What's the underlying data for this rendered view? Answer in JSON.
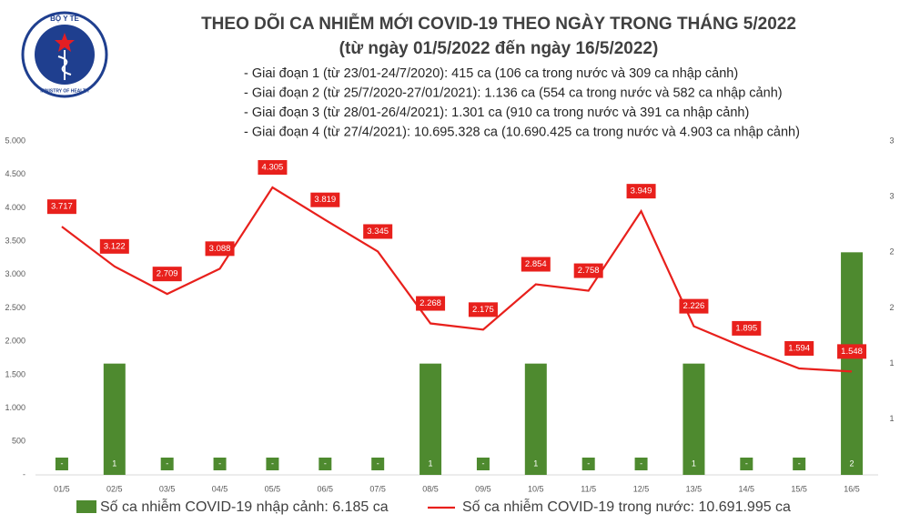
{
  "chart_data": {
    "type": "combo",
    "logo_texts": [
      "BỘ Y TẾ",
      "MINISTRY OF HEALTH"
    ],
    "title": "THEO DÕI CA NHIỄM MỚI COVID-19 THEO NGÀY TRONG THÁNG 5/2022",
    "subtitle": "(từ ngày 01/5/2022 đến ngày 16/5/2022)",
    "annotations": [
      "- Giai đoạn 1 (từ 23/01-24/7/2020): 415 ca (106 ca trong nước và 309 ca nhập cảnh)",
      "- Giai đoạn 2 (từ 25/7/2020-27/01/2021): 1.136 ca (554 ca trong nước và 582 ca nhập cảnh)",
      "- Giai đoạn 3 (từ 28/01-26/4/2021): 1.301 ca (910 ca trong nước và 391 ca nhập cảnh)",
      "- Giai đoạn 4 (từ 27/4/2021): 10.695.328 ca (10.690.425 ca trong nước và 4.903 ca nhập cảnh)"
    ],
    "categories": [
      "01/5",
      "02/5",
      "03/5",
      "04/5",
      "05/5",
      "06/5",
      "07/5",
      "08/5",
      "09/5",
      "10/5",
      "11/5",
      "12/5",
      "13/5",
      "14/5",
      "15/5",
      "16/5"
    ],
    "series": [
      {
        "name": "Số ca nhiễm COVID-19 nhập cảnh: 6.185 ca",
        "type": "bar",
        "axis": "y2",
        "color": "#4e8a2f",
        "values": [
          0,
          1,
          0,
          0,
          0,
          0,
          0,
          1,
          0,
          1,
          0,
          0,
          1,
          0,
          0,
          2
        ],
        "value_labels": [
          "-",
          "1",
          "-",
          "-",
          "-",
          "-",
          "-",
          "1",
          "-",
          "1",
          "-",
          "-",
          "1",
          "-",
          "-",
          "2"
        ]
      },
      {
        "name": "Số ca nhiễm COVID-19 trong nước: 10.691.995 ca",
        "type": "line",
        "color": "#e8201c",
        "values": [
          3717,
          3122,
          2709,
          3088,
          4305,
          3819,
          3345,
          2268,
          2175,
          2854,
          2758,
          3949,
          2226,
          1895,
          1594,
          1548
        ],
        "value_labels": [
          "3.717",
          "3.122",
          "2.709",
          "3.088",
          "4.305",
          "3.819",
          "3.345",
          "2.268",
          "2.175",
          "2.854",
          "2.758",
          "3.949",
          "2.226",
          "1.895",
          "1.594",
          "1.548"
        ]
      }
    ],
    "ylim": [
      0,
      5000
    ],
    "yticks": [
      {
        "value": 0,
        "label": "-"
      },
      500,
      {
        "value": 1000,
        "label": "1.000"
      },
      {
        "value": 1500,
        "label": "1.500"
      },
      {
        "value": 2000,
        "label": "2.000"
      },
      {
        "value": 2500,
        "label": "2.500"
      },
      {
        "value": 3000,
        "label": "3.000"
      },
      {
        "value": 3500,
        "label": "3.500"
      },
      {
        "value": 4000,
        "label": "4.000"
      },
      {
        "value": 4500,
        "label": "4.500"
      },
      {
        "value": 5000,
        "label": "5.000"
      }
    ],
    "y2lim": [
      0,
      3
    ],
    "y2ticks": [
      {
        "value": 0.5,
        "label": "1"
      },
      1,
      {
        "value": 1.5,
        "label": "2"
      },
      2,
      {
        "value": 2.5,
        "label": "3"
      },
      3
    ]
  }
}
